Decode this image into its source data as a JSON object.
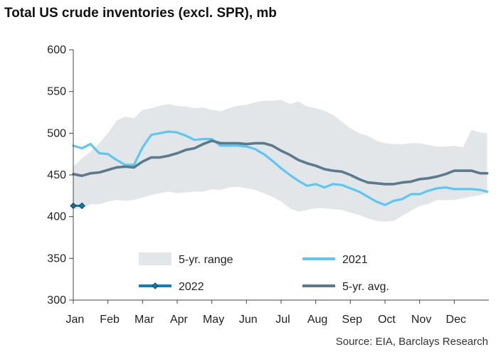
{
  "chart_data": {
    "type": "line",
    "title": "Total US crude inventories (excl. SPR), mb",
    "source": "Source: EIA, Barclays Research",
    "ylim": [
      300,
      600
    ],
    "yticks": [
      300,
      350,
      400,
      450,
      500,
      550,
      600
    ],
    "xlim": [
      0,
      12
    ],
    "months": [
      "Jan",
      "Feb",
      "Mar",
      "Apr",
      "May",
      "Jun",
      "Jul",
      "Aug",
      "Sep",
      "Oct",
      "Nov",
      "Dec"
    ],
    "grid": false,
    "legend": [
      {
        "label": "5-yr. range",
        "kind": "band"
      },
      {
        "label": "2021",
        "kind": "line"
      },
      {
        "label": "2022",
        "kind": "marker-line"
      },
      {
        "label": "5-yr. avg.",
        "kind": "line"
      }
    ],
    "colors": {
      "range": "#e3e6e9",
      "y2021": "#5cc8f2",
      "y2022": "#0f7fb6",
      "avg": "#5a7a8e",
      "axis": "#444444"
    },
    "series": [
      {
        "name": "2021",
        "x": [
          0.0,
          0.25,
          0.5,
          0.75,
          1.0,
          1.25,
          1.5,
          1.75,
          2.0,
          2.25,
          2.5,
          2.75,
          3.0,
          3.25,
          3.5,
          3.75,
          4.0,
          4.25,
          4.5,
          4.75,
          5.0,
          5.25,
          5.5,
          5.75,
          6.0,
          6.25,
          6.5,
          6.75,
          7.0,
          7.25,
          7.5,
          7.75,
          8.0,
          8.25,
          8.5,
          8.75,
          9.0,
          9.25,
          9.5,
          9.75,
          10.0,
          10.25,
          10.5,
          10.75,
          11.0,
          11.25,
          11.5,
          11.75,
          11.95
        ],
        "values": [
          485,
          482,
          487,
          476,
          475,
          468,
          462,
          462,
          483,
          498,
          500,
          502,
          501,
          497,
          492,
          493,
          493,
          485,
          485,
          485,
          484,
          481,
          475,
          467,
          458,
          450,
          443,
          437,
          439,
          435,
          439,
          438,
          434,
          430,
          424,
          418,
          414,
          419,
          421,
          427,
          427,
          431,
          434,
          435,
          433,
          433,
          433,
          432,
          430
        ]
      },
      {
        "name": "5-yr. avg.",
        "x": [
          0.0,
          0.25,
          0.5,
          0.75,
          1.0,
          1.25,
          1.5,
          1.75,
          2.0,
          2.25,
          2.5,
          2.75,
          3.0,
          3.25,
          3.5,
          3.75,
          4.0,
          4.25,
          4.5,
          4.75,
          5.0,
          5.25,
          5.5,
          5.75,
          6.0,
          6.25,
          6.5,
          6.75,
          7.0,
          7.25,
          7.5,
          7.75,
          8.0,
          8.25,
          8.5,
          8.75,
          9.0,
          9.25,
          9.5,
          9.75,
          10.0,
          10.25,
          10.5,
          10.75,
          11.0,
          11.25,
          11.5,
          11.75,
          11.95
        ],
        "values": [
          451,
          449,
          452,
          453,
          456,
          459,
          460,
          459,
          466,
          471,
          471,
          473,
          476,
          480,
          482,
          487,
          491,
          488,
          488,
          488,
          487,
          488,
          488,
          485,
          479,
          474,
          468,
          464,
          461,
          457,
          455,
          454,
          450,
          445,
          441,
          440,
          439,
          439,
          441,
          442,
          445,
          446,
          448,
          451,
          455,
          455,
          455,
          452,
          452
        ]
      },
      {
        "name": "5-yr. range",
        "x": [
          0.0,
          0.25,
          0.5,
          0.75,
          1.0,
          1.25,
          1.5,
          1.75,
          2.0,
          2.25,
          2.5,
          2.75,
          3.0,
          3.25,
          3.5,
          3.75,
          4.0,
          4.25,
          4.5,
          4.75,
          5.0,
          5.25,
          5.5,
          5.75,
          6.0,
          6.25,
          6.5,
          6.75,
          7.0,
          7.25,
          7.5,
          7.75,
          8.0,
          8.25,
          8.5,
          8.75,
          9.0,
          9.25,
          9.5,
          9.75,
          10.0,
          10.25,
          10.5,
          10.75,
          11.0,
          11.25,
          11.5,
          11.75,
          11.95
        ],
        "upper": [
          460,
          470,
          478,
          488,
          500,
          515,
          520,
          518,
          528,
          530,
          533,
          535,
          533,
          532,
          530,
          531,
          528,
          526,
          530,
          533,
          534,
          537,
          539,
          539,
          540,
          535,
          538,
          532,
          530,
          527,
          522,
          514,
          506,
          500,
          497,
          491,
          488,
          487,
          487,
          488,
          488,
          486,
          484,
          484,
          485,
          483,
          504,
          501,
          500
        ],
        "lower": [
          409,
          410,
          415,
          415,
          418,
          420,
          419,
          420,
          423,
          426,
          428,
          430,
          428,
          429,
          430,
          430,
          433,
          432,
          435,
          436,
          434,
          432,
          428,
          424,
          418,
          410,
          406,
          408,
          410,
          410,
          409,
          408,
          405,
          402,
          398,
          395,
          394,
          395,
          401,
          407,
          413,
          415,
          420,
          420,
          420,
          422,
          424,
          426,
          428
        ]
      },
      {
        "name": "2022",
        "x": [
          0.0,
          0.25
        ],
        "values": [
          413,
          413
        ]
      }
    ]
  }
}
